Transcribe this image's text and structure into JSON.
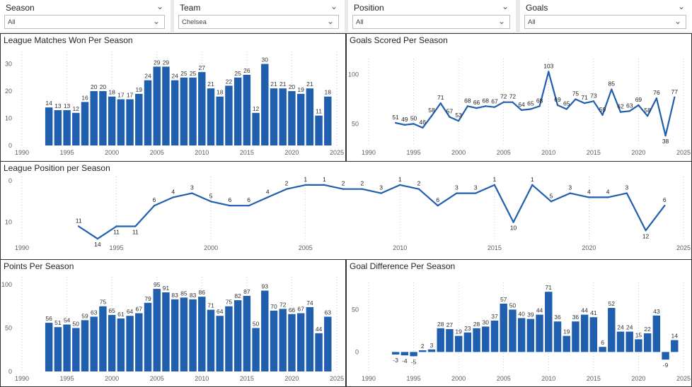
{
  "filters": [
    {
      "label": "Season",
      "value": "All"
    },
    {
      "label": "Team",
      "value": "Chelsea"
    },
    {
      "label": "Position",
      "value": "All"
    },
    {
      "label": "Goals",
      "value": "All"
    }
  ],
  "colors": {
    "accent": "#1f5fae",
    "grid": "#c8c8c8",
    "axis": "#605e5c"
  },
  "chart_data": [
    {
      "id": "wins",
      "type": "bar",
      "title": "League Matches Won Per Season",
      "x": [
        1993,
        1994,
        1995,
        1996,
        1997,
        1998,
        1999,
        2000,
        2001,
        2002,
        2003,
        2004,
        2005,
        2006,
        2007,
        2008,
        2009,
        2010,
        2011,
        2012,
        2013,
        2014,
        2015,
        2016,
        2017,
        2018,
        2019,
        2020,
        2021,
        2022,
        2023,
        2024
      ],
      "values": [
        14,
        13,
        13,
        12,
        16,
        20,
        20,
        18,
        17,
        17,
        19,
        24,
        29,
        29,
        24,
        25,
        25,
        27,
        21,
        18,
        22,
        25,
        26,
        12,
        30,
        21,
        21,
        20,
        19,
        21,
        11,
        18
      ],
      "xlim": [
        1990,
        2025
      ],
      "ylim": [
        0,
        33
      ],
      "xticks": [
        1990,
        1995,
        2000,
        2005,
        2010,
        2015,
        2020,
        2025
      ],
      "yticks": [
        0,
        10,
        20,
        30
      ]
    },
    {
      "id": "goals",
      "type": "line",
      "title": "Goals Scored Per Season",
      "x": [
        1993,
        1994,
        1995,
        1996,
        1997,
        1998,
        1999,
        2000,
        2001,
        2002,
        2003,
        2004,
        2005,
        2006,
        2007,
        2008,
        2009,
        2010,
        2011,
        2012,
        2013,
        2014,
        2015,
        2016,
        2017,
        2018,
        2019,
        2020,
        2021,
        2022,
        2023,
        2024
      ],
      "values": [
        51,
        49,
        50,
        46,
        58,
        71,
        57,
        53,
        68,
        66,
        68,
        67,
        72,
        72,
        64,
        65,
        68,
        103,
        69,
        65,
        75,
        71,
        73,
        59,
        85,
        62,
        63,
        69,
        58,
        76,
        38,
        77
      ],
      "xlim": [
        1990,
        2025
      ],
      "ylim": [
        28,
        112
      ],
      "xticks": [
        1990,
        1995,
        2000,
        2005,
        2010,
        2015,
        2020,
        2025
      ],
      "yticks": [
        50,
        100
      ]
    },
    {
      "id": "position",
      "type": "line",
      "title": "League Position per Season",
      "x": [
        1993,
        1994,
        1995,
        1996,
        1997,
        1998,
        1999,
        2000,
        2001,
        2002,
        2003,
        2004,
        2005,
        2006,
        2007,
        2008,
        2009,
        2010,
        2011,
        2012,
        2013,
        2014,
        2015,
        2016,
        2017,
        2018,
        2019,
        2020,
        2021,
        2022,
        2023,
        2024
      ],
      "values": [
        11,
        14,
        11,
        11,
        6,
        4,
        3,
        5,
        6,
        6,
        4,
        2,
        1,
        1,
        2,
        2,
        3,
        1,
        2,
        6,
        3,
        3,
        1,
        10,
        1,
        5,
        3,
        4,
        4,
        3,
        12,
        6
      ],
      "xlim": [
        1990,
        2025
      ],
      "ylim": [
        0,
        14.5
      ],
      "inverted": true,
      "xticks": [
        1990,
        1995,
        2000,
        2005,
        2010,
        2015,
        2020,
        2025
      ],
      "yticks": [
        0,
        10
      ]
    },
    {
      "id": "points",
      "type": "bar",
      "title": "Points Per Season",
      "x": [
        1993,
        1994,
        1995,
        1996,
        1997,
        1998,
        1999,
        2000,
        2001,
        2002,
        2003,
        2004,
        2005,
        2006,
        2007,
        2008,
        2009,
        2010,
        2011,
        2012,
        2013,
        2014,
        2015,
        2016,
        2017,
        2018,
        2019,
        2020,
        2021,
        2022,
        2023,
        2024
      ],
      "values": [
        56,
        51,
        54,
        50,
        59,
        63,
        75,
        65,
        61,
        64,
        67,
        79,
        95,
        91,
        83,
        85,
        83,
        86,
        71,
        64,
        75,
        82,
        87,
        50,
        93,
        70,
        72,
        66,
        67,
        74,
        44,
        63
      ],
      "xlim": [
        1990,
        2025
      ],
      "ylim": [
        0,
        104
      ],
      "xticks": [
        1990,
        1995,
        2000,
        2005,
        2010,
        2015,
        2020,
        2025
      ],
      "yticks": [
        0,
        50,
        100
      ]
    },
    {
      "id": "gd",
      "type": "bar",
      "title": "Goal Difference Per Season",
      "x": [
        1993,
        1994,
        1995,
        1996,
        1997,
        1998,
        1999,
        2000,
        2001,
        2002,
        2003,
        2004,
        2005,
        2006,
        2007,
        2008,
        2009,
        2010,
        2011,
        2012,
        2013,
        2014,
        2015,
        2016,
        2017,
        2018,
        2019,
        2020,
        2021,
        2022,
        2023,
        2024
      ],
      "values": [
        -3,
        -4,
        -5,
        2,
        3,
        28,
        27,
        19,
        23,
        28,
        30,
        37,
        57,
        50,
        40,
        39,
        44,
        71,
        36,
        19,
        36,
        44,
        41,
        6,
        52,
        24,
        24,
        15,
        22,
        43,
        -9,
        14
      ],
      "xlim": [
        1990,
        2025
      ],
      "ylim": [
        -23,
        77
      ],
      "xticks": [
        1990,
        1995,
        2000,
        2005,
        2010,
        2015,
        2020,
        2025
      ],
      "yticks": [
        0,
        50
      ]
    }
  ]
}
